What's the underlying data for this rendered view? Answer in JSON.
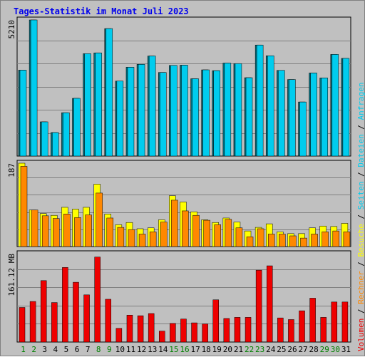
{
  "title": "Tages-Statistik im Monat Juli 2023",
  "colors": {
    "background": "#c0c0c0",
    "title": "#0000ee",
    "anfragen": "#00ccee",
    "anfragen_shadow": "#007080",
    "dateien": "#00ccee",
    "besuche": "#ffff00",
    "rechner": "#ff8800",
    "seiten": "#00ccee",
    "volumen": "#ee0000",
    "weekend_label": "#008000",
    "weekday_label": "#000000",
    "grid": "#808080"
  },
  "legend": {
    "sep": " / ",
    "anfragen": "Anfragen",
    "dateien": "Dateien",
    "seiten": "Seiten",
    "besuche": "Besuche",
    "rechner": "Rechner",
    "volumen": "Volumen"
  },
  "chart_data": [
    {
      "type": "bar",
      "panel": "hits",
      "ymax_label": "5210",
      "ylim": [
        0,
        5210
      ],
      "categories": [
        "1",
        "2",
        "3",
        "4",
        "5",
        "6",
        "7",
        "8",
        "9",
        "10",
        "11",
        "12",
        "13",
        "14",
        "15",
        "16",
        "17",
        "18",
        "19",
        "20",
        "21",
        "22",
        "23",
        "24",
        "25",
        "26",
        "27",
        "28",
        "29",
        "30",
        "31"
      ],
      "weekend_days": [
        "1",
        "2",
        "8",
        "9",
        "15",
        "16",
        "22",
        "23",
        "29",
        "30"
      ],
      "series": [
        {
          "name": "Anfragen",
          "values": [
            3290,
            5210,
            1310,
            900,
            1660,
            2210,
            3920,
            3950,
            4880,
            2870,
            3400,
            3510,
            3830,
            3200,
            3470,
            3480,
            2960,
            3300,
            3270,
            3560,
            3540,
            3000,
            4250,
            3840,
            3280,
            2930,
            2070,
            3180,
            2990,
            3890,
            3740
          ]
        },
        {
          "name": "Dateien",
          "values": [
            3240,
            5170,
            1270,
            870,
            1620,
            2170,
            3880,
            3910,
            4840,
            2830,
            3360,
            3470,
            3790,
            3160,
            3430,
            3440,
            2920,
            3260,
            3230,
            3520,
            3500,
            2960,
            4210,
            3800,
            3240,
            2890,
            2030,
            3140,
            2950,
            3850,
            3700
          ]
        }
      ]
    },
    {
      "type": "bar",
      "panel": "visits",
      "ymax_label": "187",
      "ylim": [
        0,
        187
      ],
      "series": [
        {
          "name": "Besuche",
          "values": [
            187,
            82,
            74,
            70,
            88,
            84,
            88,
            140,
            73,
            49,
            54,
            40,
            42,
            60,
            114,
            100,
            78,
            60,
            54,
            64,
            55,
            35,
            43,
            51,
            33,
            29,
            29,
            42,
            46,
            45,
            52
          ]
        },
        {
          "name": "Rechner",
          "values": [
            180,
            82,
            69,
            63,
            73,
            65,
            71,
            120,
            64,
            43,
            38,
            28,
            33,
            55,
            104,
            80,
            70,
            59,
            49,
            61,
            42,
            22,
            40,
            28,
            28,
            24,
            19,
            28,
            33,
            35,
            33
          ]
        }
      ]
    },
    {
      "type": "bar",
      "panel": "volume",
      "ymax_label": "161.12 MB",
      "ylim": [
        0,
        161.12
      ],
      "series": [
        {
          "name": "Volumen",
          "values": [
            63,
            74,
            112,
            72,
            136,
            109,
            86,
            155,
            78,
            25,
            49,
            48,
            52,
            20,
            34,
            42,
            35,
            33,
            77,
            43,
            45,
            45,
            131,
            139,
            44,
            41,
            57,
            80,
            45,
            73,
            73
          ]
        }
      ]
    }
  ]
}
